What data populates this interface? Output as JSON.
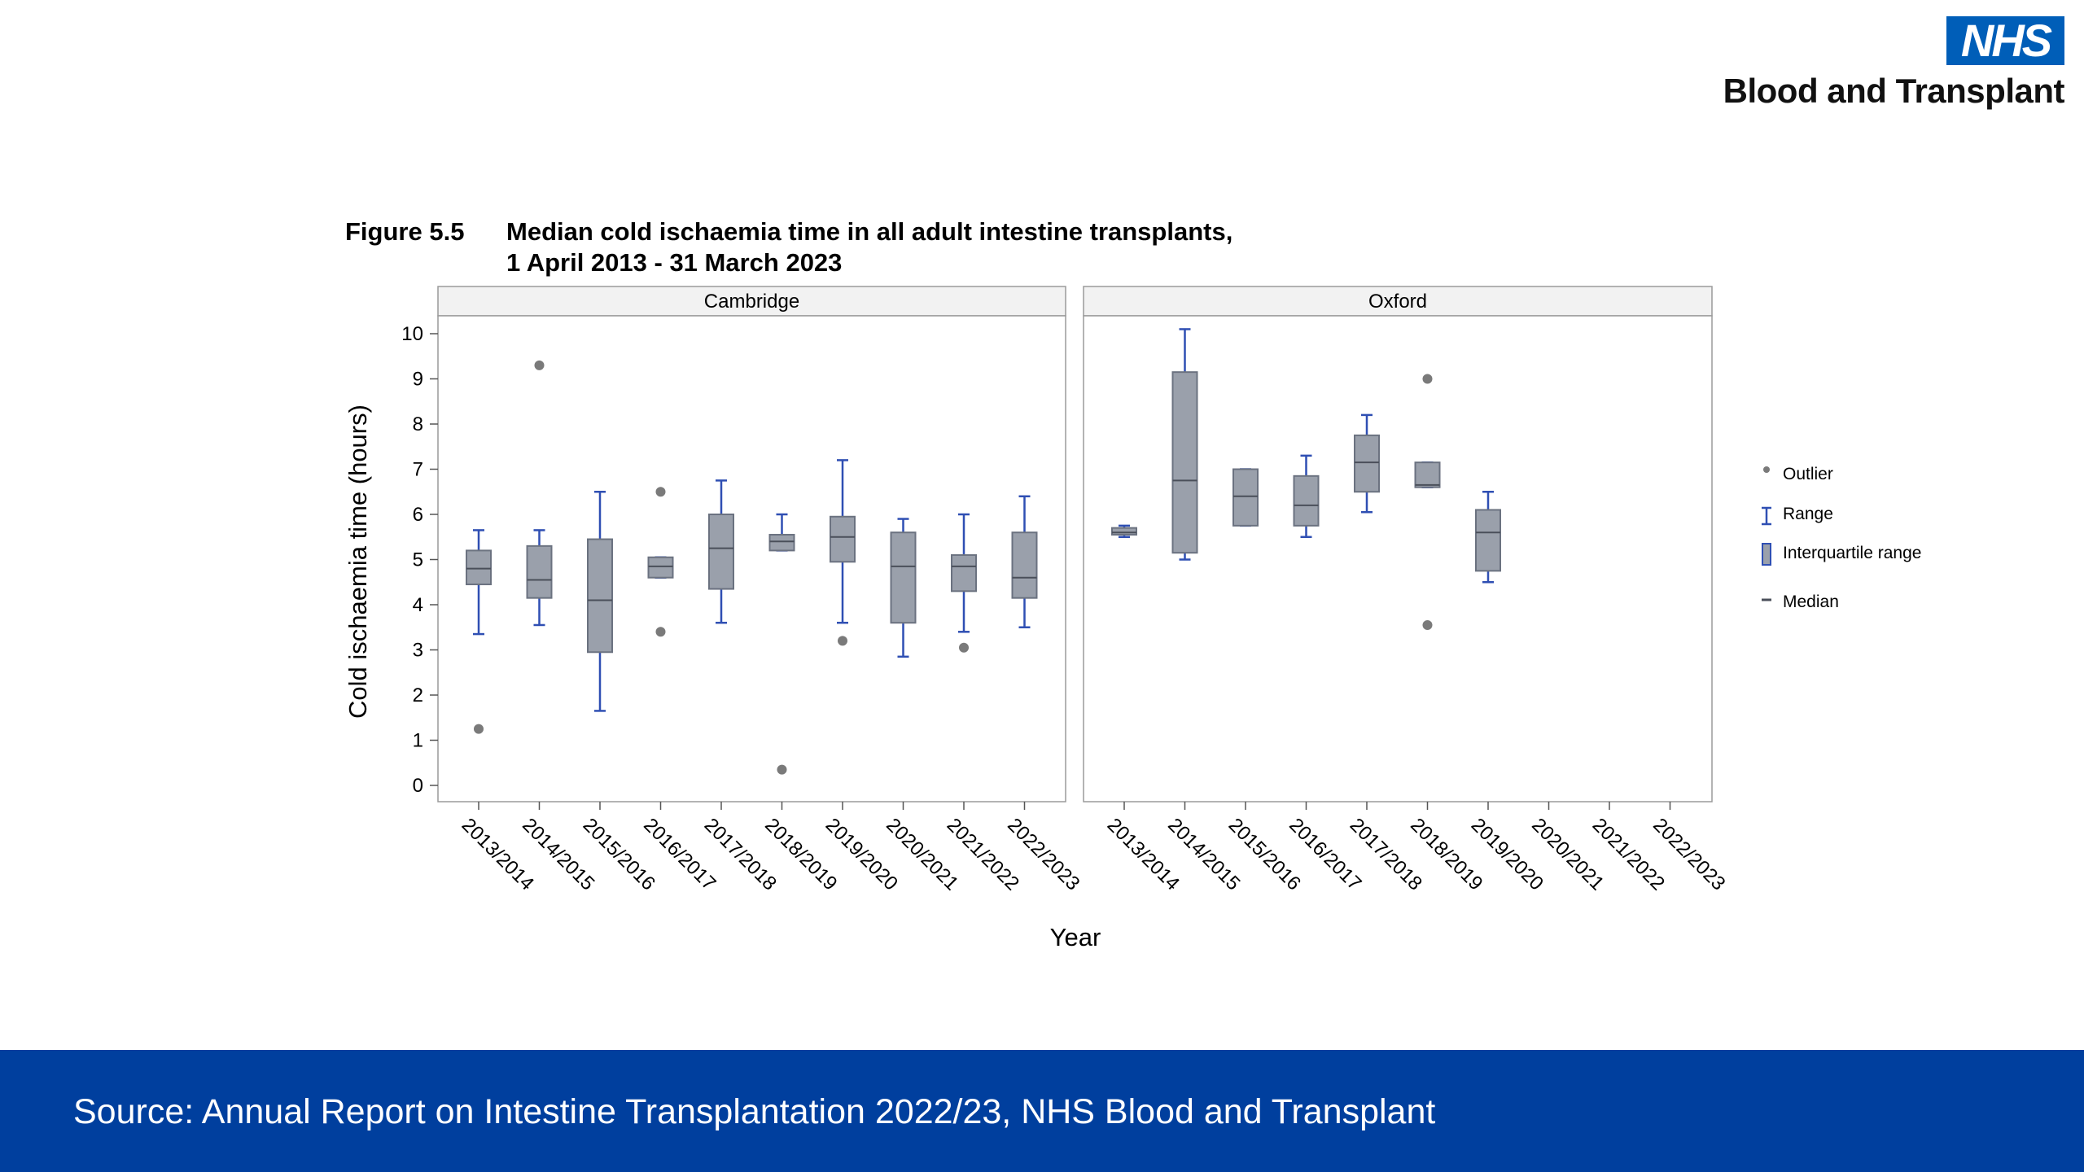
{
  "logo": {
    "mark": "NHS",
    "org": "Blood and Transplant"
  },
  "figure": {
    "label": "Figure 5.5",
    "title_line1": "Median cold ischaemia time in all adult intestine transplants,",
    "title_line2": "1 April 2013 - 31 March 2023"
  },
  "footer": {
    "source": "Source: Annual Report on Intestine Transplantation 2022/23, NHS Blood and Transplant"
  },
  "chart_data": {
    "type": "box",
    "ylabel": "Cold ischaemia time (hours)",
    "xlabel": "Year",
    "ylim": [
      0,
      10
    ],
    "yticks": [
      "0",
      "1",
      "2",
      "3",
      "4",
      "5",
      "6",
      "7",
      "8",
      "9",
      "10"
    ],
    "categories": [
      "2013/2014",
      "2014/2015",
      "2015/2016",
      "2016/2017",
      "2017/2018",
      "2018/2019",
      "2019/2020",
      "2020/2021",
      "2021/2022",
      "2022/2023"
    ],
    "legend": [
      "Outlier",
      "Range",
      "Interquartile range",
      "Median"
    ],
    "legend_position": "right",
    "colors": {
      "box_fill": "#9aa0ab",
      "box_stroke": "#6b7280",
      "whisker": "#2f4fb3",
      "outlier": "#7a7a7a"
    },
    "panels": [
      {
        "name": "Cambridge",
        "boxes": [
          {
            "min": 3.35,
            "q1": 4.45,
            "median": 4.8,
            "q3": 5.2,
            "max": 5.65,
            "outliers": [
              1.25
            ]
          },
          {
            "min": 3.55,
            "q1": 4.15,
            "median": 4.55,
            "q3": 5.3,
            "max": 5.65,
            "outliers": [
              9.3
            ]
          },
          {
            "min": 1.65,
            "q1": 2.95,
            "median": 4.1,
            "q3": 5.45,
            "max": 6.5,
            "outliers": []
          },
          {
            "min": 4.6,
            "q1": 4.6,
            "median": 4.85,
            "q3": 5.05,
            "max": 5.05,
            "outliers": [
              6.5,
              3.4
            ]
          },
          {
            "min": 3.6,
            "q1": 4.35,
            "median": 5.25,
            "q3": 6.0,
            "max": 6.75,
            "outliers": []
          },
          {
            "min": 5.2,
            "q1": 5.2,
            "median": 5.4,
            "q3": 5.55,
            "max": 6.0,
            "outliers": [
              0.35
            ]
          },
          {
            "min": 3.6,
            "q1": 4.95,
            "median": 5.5,
            "q3": 5.95,
            "max": 7.2,
            "outliers": [
              3.2
            ]
          },
          {
            "min": 2.85,
            "q1": 3.6,
            "median": 4.85,
            "q3": 5.6,
            "max": 5.9,
            "outliers": []
          },
          {
            "min": 3.4,
            "q1": 4.3,
            "median": 4.85,
            "q3": 5.1,
            "max": 6.0,
            "outliers": [
              3.05
            ]
          },
          {
            "min": 3.5,
            "q1": 4.15,
            "median": 4.6,
            "q3": 5.6,
            "max": 6.4,
            "outliers": []
          }
        ]
      },
      {
        "name": "Oxford",
        "boxes": [
          {
            "min": 5.5,
            "q1": 5.55,
            "median": 5.6,
            "q3": 5.7,
            "max": 5.75,
            "outliers": []
          },
          {
            "min": 5.0,
            "q1": 5.15,
            "median": 6.75,
            "q3": 9.15,
            "max": 10.1,
            "outliers": []
          },
          {
            "min": 5.75,
            "q1": 5.75,
            "median": 6.4,
            "q3": 7.0,
            "max": 7.0,
            "outliers": []
          },
          {
            "min": 5.5,
            "q1": 5.75,
            "median": 6.2,
            "q3": 6.85,
            "max": 7.3,
            "outliers": []
          },
          {
            "min": 6.05,
            "q1": 6.5,
            "median": 7.15,
            "q3": 7.75,
            "max": 8.2,
            "outliers": []
          },
          {
            "min": 6.6,
            "q1": 6.6,
            "median": 6.65,
            "q3": 7.15,
            "max": 7.15,
            "outliers": [
              9.0,
              3.55
            ]
          },
          {
            "min": 4.5,
            "q1": 4.75,
            "median": 5.6,
            "q3": 6.1,
            "max": 6.5,
            "outliers": []
          },
          null,
          null,
          null
        ]
      }
    ]
  }
}
